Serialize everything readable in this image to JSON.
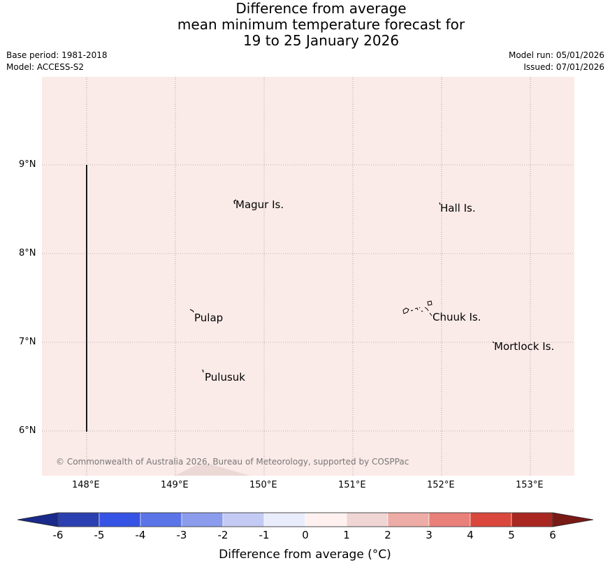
{
  "header": {
    "title_line1": "Difference from average",
    "title_line2": "mean minimum temperature forecast for",
    "title_line3": "19 to 25 January 2026",
    "base_period": "Base period: 1981-2018",
    "model": "Model: ACCESS-S2",
    "model_run": "Model run: 05/01/2026",
    "issued": "Issued: 07/01/2026"
  },
  "map": {
    "background_color": "#fbebe8",
    "latitude_labels": [
      {
        "value": 9,
        "label": "9°N"
      },
      {
        "value": 8,
        "label": "8°N"
      },
      {
        "value": 7,
        "label": "7°N"
      },
      {
        "value": 6,
        "label": "6°N"
      }
    ],
    "longitude_labels": [
      {
        "value": 148,
        "label": "148°E"
      },
      {
        "value": 149,
        "label": "149°E"
      },
      {
        "value": 150,
        "label": "150°E"
      },
      {
        "value": 151,
        "label": "151°E"
      },
      {
        "value": 152,
        "label": "152°E"
      },
      {
        "value": 153,
        "label": "153°E"
      }
    ],
    "places": [
      {
        "name": "Magur Is.",
        "lon": 149.68,
        "lat": 8.55
      },
      {
        "name": "Hall Is.",
        "lon": 151.98,
        "lat": 8.51
      },
      {
        "name": "Pulap",
        "lon": 149.2,
        "lat": 7.28
      },
      {
        "name": "Chuuk Is.",
        "lon": 151.88,
        "lat": 7.29
      },
      {
        "name": "Mortlock Is.",
        "lon": 152.6,
        "lat": 6.96
      },
      {
        "name": "Pulusuk",
        "lon": 149.32,
        "lat": 6.61
      }
    ],
    "copyright": "© Commonwealth of Australia 2026, Bureau of Meteorology, supported by COSPPac"
  },
  "colorbar": {
    "label": "Difference from average (°C)",
    "ticks": [
      "-6",
      "-5",
      "-4",
      "-3",
      "-2",
      "-1",
      "0",
      "1",
      "2",
      "3",
      "4",
      "5",
      "6"
    ],
    "under_color": "#1a2a8a",
    "over_color": "#7a1a16",
    "colors": [
      "#2a3fb0",
      "#3553e4",
      "#5b74e8",
      "#8b9ced",
      "#c3cbf4",
      "#e9ecfb",
      "#fef1ef",
      "#efd6d4",
      "#eeaca6",
      "#e98079",
      "#da473c",
      "#a92720"
    ]
  }
}
